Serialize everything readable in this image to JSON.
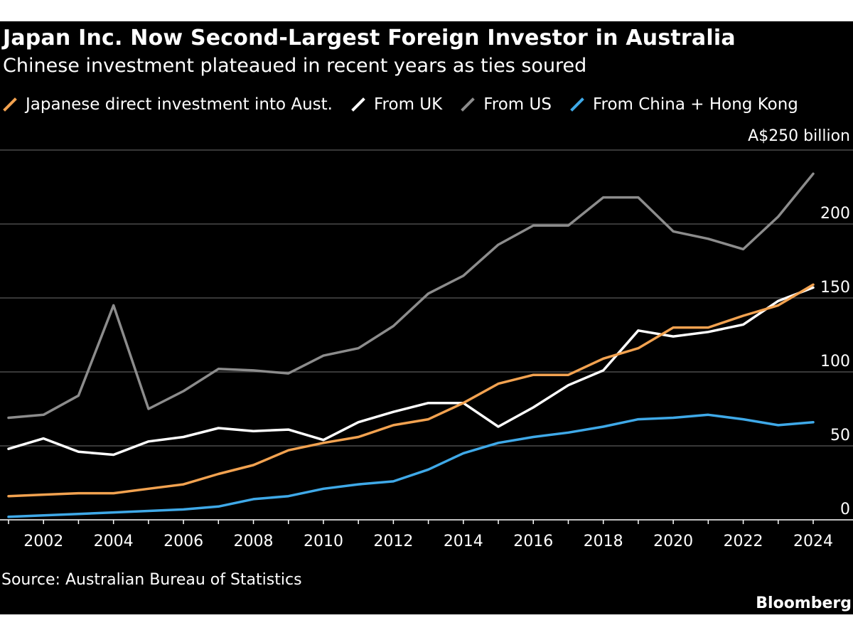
{
  "chart_data": {
    "type": "line",
    "title": "Japan Inc. Now Second-Largest Foreign Investor in Australia",
    "subtitle": "Chinese investment plateaued in recent years as ties soured",
    "unit_label": "A$250 billion",
    "y_ticks": [
      0,
      50,
      100,
      150,
      200
    ],
    "ylim": [
      0,
      250
    ],
    "xlim": [
      2001,
      2025
    ],
    "x_ticks": [
      2002,
      2004,
      2006,
      2008,
      2010,
      2012,
      2014,
      2016,
      2018,
      2020,
      2022,
      2024
    ],
    "grid": true,
    "legend_position": "top",
    "source": "Source: Australian Bureau of Statistics",
    "brand": "Bloomberg",
    "series": [
      {
        "name": "Japanese direct investment into Aust.",
        "color": "#f2a250",
        "x": [
          2001,
          2002,
          2003,
          2004,
          2005,
          2006,
          2007,
          2008,
          2009,
          2010,
          2011,
          2012,
          2013,
          2014,
          2015,
          2016,
          2017,
          2018,
          2019,
          2020,
          2021,
          2022,
          2023,
          2024
        ],
        "values": [
          16,
          17,
          18,
          18,
          21,
          24,
          31,
          37,
          47,
          52,
          56,
          64,
          68,
          79,
          92,
          98,
          98,
          109,
          116,
          130,
          130,
          138,
          145,
          159
        ]
      },
      {
        "name": "From UK",
        "color": "#ffffff",
        "x": [
          2001,
          2002,
          2003,
          2004,
          2005,
          2006,
          2007,
          2008,
          2009,
          2010,
          2011,
          2012,
          2013,
          2014,
          2015,
          2016,
          2017,
          2018,
          2019,
          2020,
          2021,
          2022,
          2023,
          2024
        ],
        "values": [
          48,
          55,
          46,
          44,
          53,
          56,
          62,
          60,
          61,
          54,
          66,
          73,
          79,
          79,
          63,
          76,
          91,
          101,
          128,
          124,
          127,
          132,
          148,
          157
        ]
      },
      {
        "name": "From US",
        "color": "#8c8c8c",
        "x": [
          2001,
          2002,
          2003,
          2004,
          2005,
          2006,
          2007,
          2008,
          2009,
          2010,
          2011,
          2012,
          2013,
          2014,
          2015,
          2016,
          2017,
          2018,
          2019,
          2020,
          2021,
          2022,
          2023,
          2024
        ],
        "values": [
          69,
          71,
          84,
          145,
          75,
          87,
          102,
          101,
          99,
          111,
          116,
          131,
          153,
          165,
          186,
          199,
          199,
          218,
          218,
          195,
          190,
          183,
          205,
          234
        ]
      },
      {
        "name": "From China + Hong Kong",
        "color": "#3fa9e8",
        "x": [
          2001,
          2002,
          2003,
          2004,
          2005,
          2006,
          2007,
          2008,
          2009,
          2010,
          2011,
          2012,
          2013,
          2014,
          2015,
          2016,
          2017,
          2018,
          2019,
          2020,
          2021,
          2022,
          2023,
          2024
        ],
        "values": [
          2,
          3,
          4,
          5,
          6,
          7,
          9,
          14,
          16,
          21,
          24,
          26,
          34,
          45,
          52,
          56,
          59,
          63,
          68,
          69,
          71,
          68,
          64,
          66
        ]
      }
    ]
  }
}
